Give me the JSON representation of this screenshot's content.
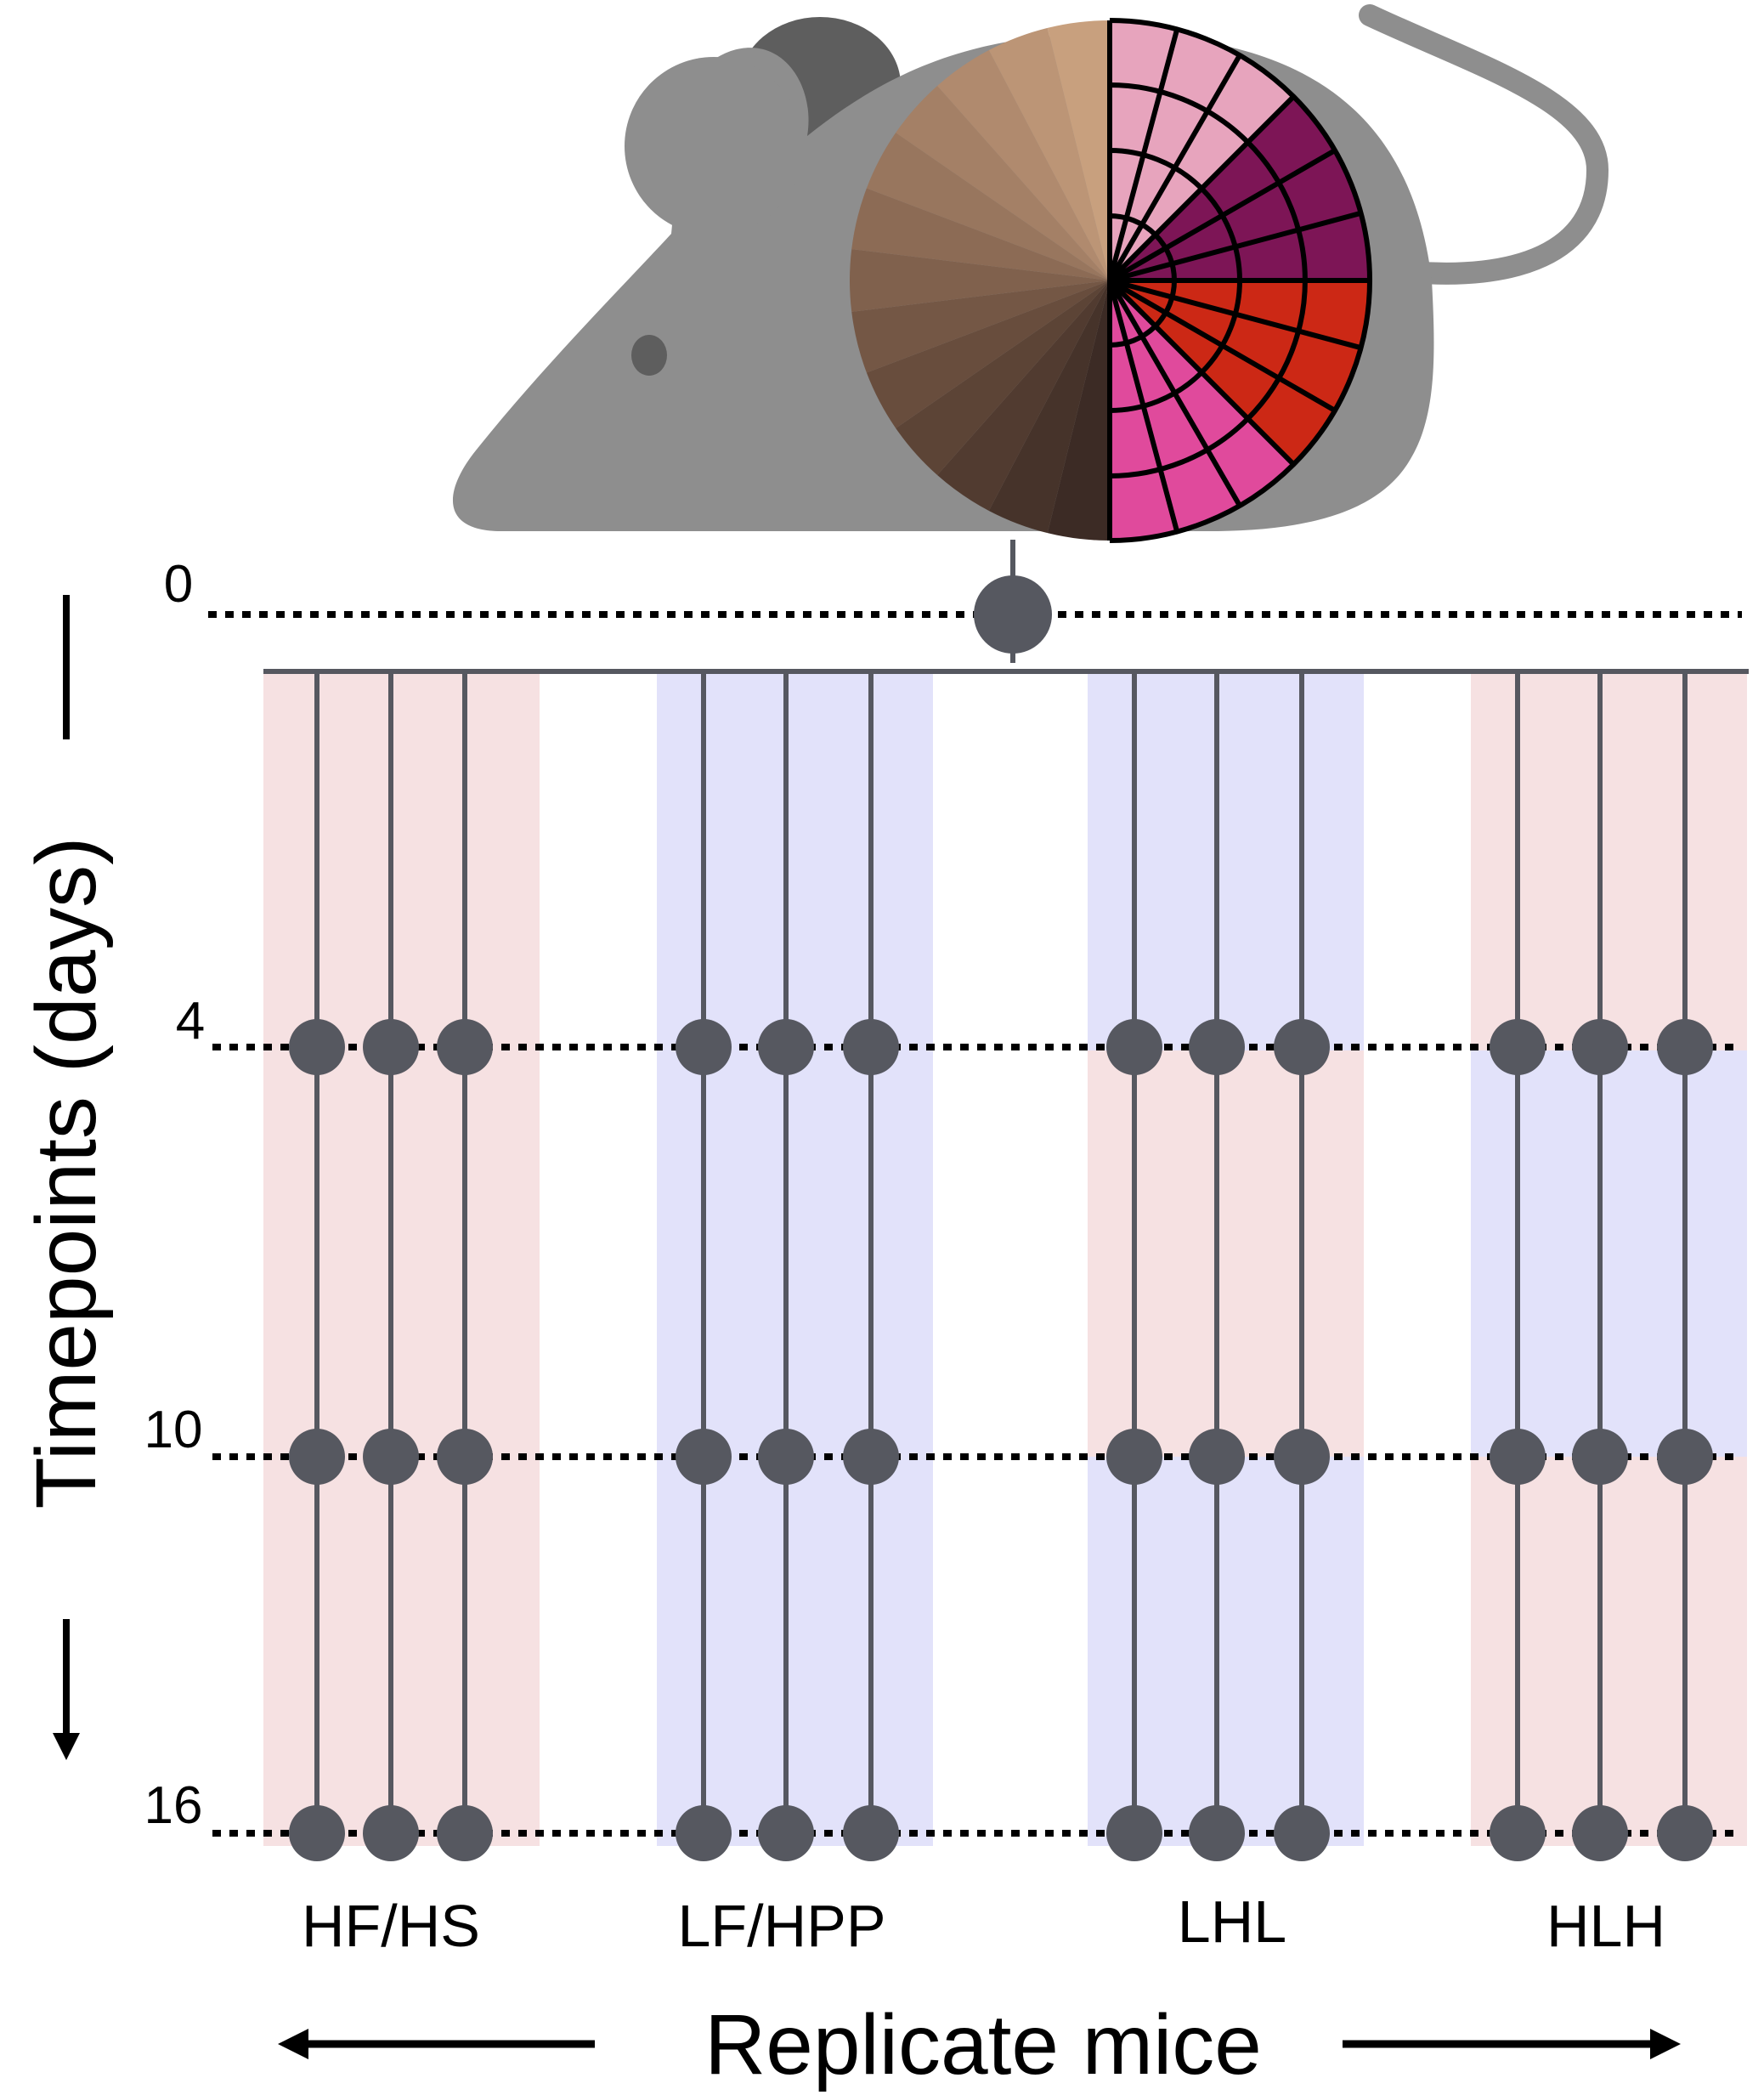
{
  "y_axis": {
    "label": "Timepoints (days)",
    "ticks": [
      "0",
      "4",
      "10",
      "16"
    ]
  },
  "x_axis": {
    "label": "Replicate mice"
  },
  "groups": [
    {
      "label": "HF/HS",
      "replicates": 3,
      "bands": [
        "pink",
        "pink",
        "pink"
      ]
    },
    {
      "label": "LF/HPP",
      "replicates": 3,
      "bands": [
        "blue",
        "blue",
        "blue"
      ]
    },
    {
      "label": "LHL",
      "replicates": 3,
      "bands": [
        "blue",
        "pink",
        "blue"
      ]
    },
    {
      "label": "HLH",
      "replicates": 3,
      "bands": [
        "pink",
        "blue",
        "pink"
      ]
    }
  ],
  "colors": {
    "band_pink": "#f6e1e2",
    "band_blue": "#e2e2fa",
    "node": "#565860",
    "mouse_body": "#8e8e8e",
    "mouse_ear": "#5e5e5e",
    "grid_line": "#000000"
  }
}
